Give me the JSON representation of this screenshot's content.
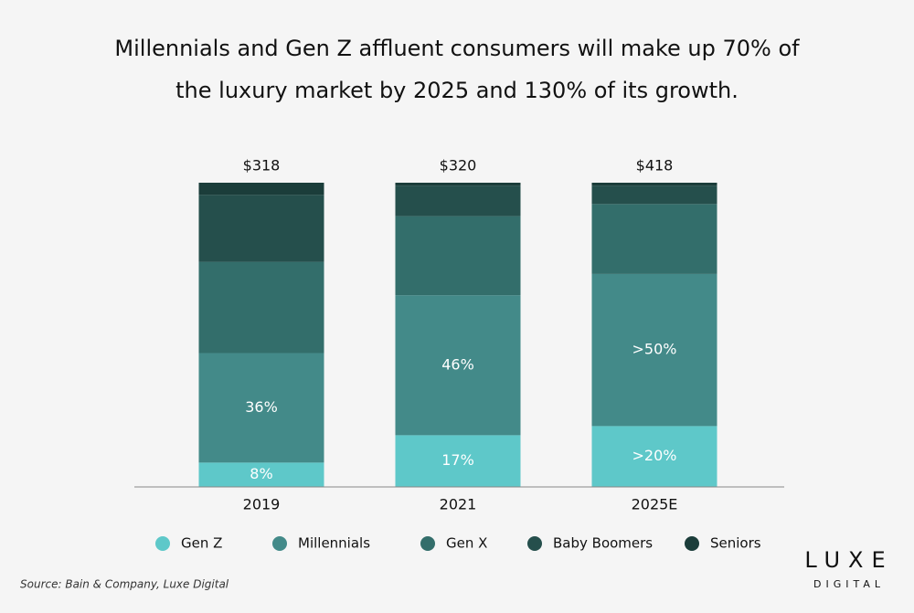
{
  "chart_data": {
    "type": "stacked_bar",
    "title": "Millennials and Gen Z affluent consumers will make up 70% of the luxury market by 2025 and 130% of its growth.",
    "categories": [
      "2019",
      "2021",
      "2025E"
    ],
    "ylim": [
      0,
      100
    ],
    "series": [
      {
        "name": "Gen Z",
        "color": "#5ec8c9",
        "values": [
          8,
          17,
          20
        ],
        "value_labels": [
          "8%",
          "17%",
          ">20%"
        ]
      },
      {
        "name": "Millennials",
        "color": "#438a89",
        "values": [
          36,
          46,
          50
        ],
        "value_labels": [
          "36%",
          "46%",
          ">50%"
        ]
      },
      {
        "name": "Gen X",
        "color": "#336e6b",
        "values": [
          30,
          26,
          23
        ]
      },
      {
        "name": "Baby Boomers",
        "color": "#254f4c",
        "values": [
          22,
          10,
          6
        ]
      },
      {
        "name": "Seniors",
        "color": "#1b3d3a",
        "values": [
          4,
          1,
          1
        ]
      }
    ],
    "totals": {
      "values": [
        318,
        320,
        418
      ],
      "value_labels": [
        "$318",
        "$320",
        "$418"
      ]
    },
    "source": "Source: Bain & Company, Luxe Digital",
    "logo": {
      "top": "LUXE",
      "bottom": "DIGITAL"
    }
  }
}
